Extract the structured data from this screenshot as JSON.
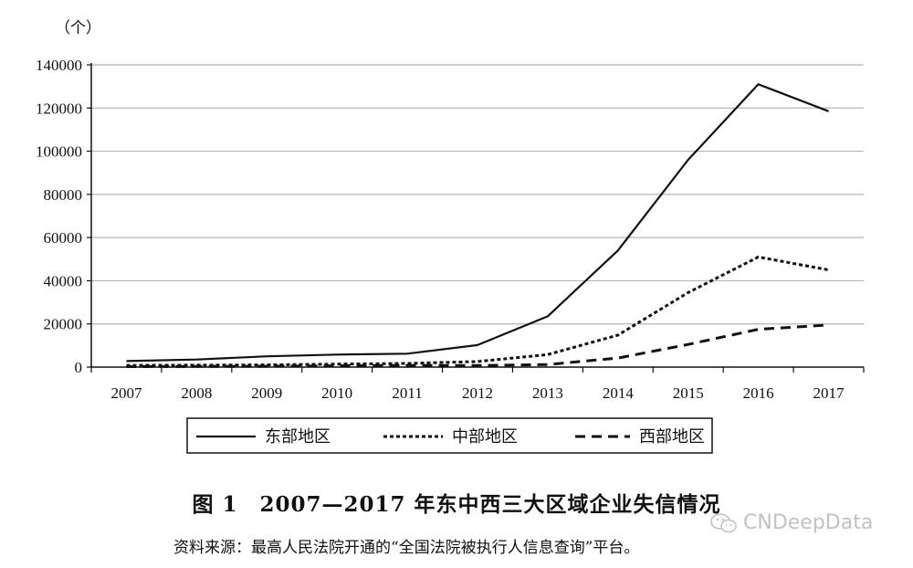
{
  "chart_data": {
    "type": "line",
    "unit_label": "（个）",
    "x": [
      "2007",
      "2008",
      "2009",
      "2010",
      "2011",
      "2012",
      "2013",
      "2014",
      "2015",
      "2016",
      "2017"
    ],
    "ylim": [
      0,
      140000
    ],
    "yticks": [
      "0",
      "20000",
      "40000",
      "60000",
      "80000",
      "100000",
      "120000",
      "140000"
    ],
    "grid": true,
    "legend_position": "bottom",
    "series": [
      {
        "name": "东部地区",
        "style": "solid",
        "values": [
          2800,
          3500,
          5000,
          5800,
          6200,
          10200,
          23500,
          54000,
          96000,
          131000,
          118500
        ]
      },
      {
        "name": "中部地区",
        "style": "dotted",
        "values": [
          800,
          900,
          1000,
          1400,
          1700,
          2600,
          5800,
          14800,
          34500,
          51000,
          45000
        ]
      },
      {
        "name": "西部地区",
        "style": "dashed",
        "values": [
          200,
          300,
          400,
          600,
          800,
          700,
          1200,
          4200,
          10500,
          17500,
          19500
        ]
      }
    ]
  },
  "caption": "图 1　2007—2017 年东中西三大区域企业失信情况",
  "source_note": "资料来源：最高人民法院开通的“全国法院被执行人信息查询”平台。",
  "watermark": "CNDeepData"
}
